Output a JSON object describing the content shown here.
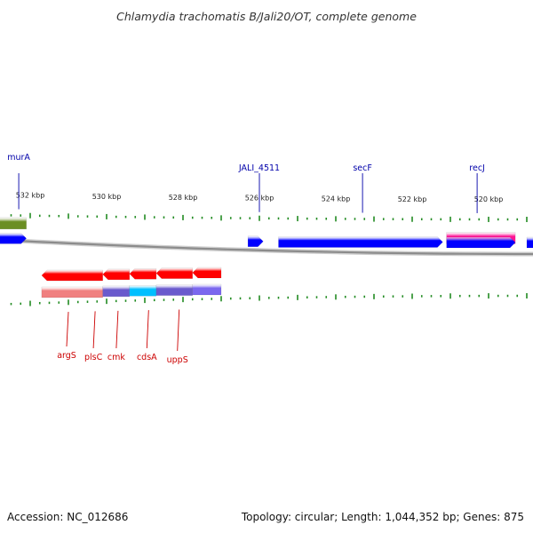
{
  "title": "Chlamydia trachomatis B/Jali20/OT, complete genome",
  "footer": {
    "accession": "Accession: NC_012686",
    "summary": "Topology: circular; Length: 1,044,352 bp; Genes: 875"
  },
  "colors": {
    "forward_cds": "#0000ff",
    "reverse_cds": "#ff0000",
    "olive_track": "#6b8e23",
    "magenta_track": "#ff1493",
    "tick": "#228b22",
    "backbone": "#999999",
    "label_top": "#0000aa",
    "label_bottom": "#cc0000"
  },
  "scale": {
    "labels": [
      {
        "kbp": 532,
        "text": "532 kbp"
      },
      {
        "kbp": 530,
        "text": "530 kbp"
      },
      {
        "kbp": 528,
        "text": "528 kbp"
      },
      {
        "kbp": 526,
        "text": "526 kbp"
      },
      {
        "kbp": 524,
        "text": "524 kbp"
      },
      {
        "kbp": 522,
        "text": "522 kbp"
      },
      {
        "kbp": 520,
        "text": "520 kbp"
      }
    ]
  },
  "top_labels": [
    {
      "name": "murA",
      "kbp": 532.3
    },
    {
      "name": "JALI_4511",
      "kbp": 526.0
    },
    {
      "name": "secF",
      "kbp": 523.3
    },
    {
      "name": "recJ",
      "kbp": 520.3
    }
  ],
  "bottom_labels": [
    {
      "name": "argS",
      "kbp": 531.0
    },
    {
      "name": "plsC",
      "kbp": 530.3
    },
    {
      "name": "cmk",
      "kbp": 529.7
    },
    {
      "name": "cdsA",
      "kbp": 528.9
    },
    {
      "name": "uppS",
      "kbp": 528.1
    }
  ],
  "features": [
    {
      "id": "olive-block",
      "track": "olive",
      "start_kbp": 533.5,
      "end_kbp": 532.1,
      "color": "#6b8e23"
    },
    {
      "id": "magenta-block",
      "track": "magenta",
      "start_kbp": 521.1,
      "end_kbp": 519.3,
      "color": "#ff1493"
    },
    {
      "id": "fwd-left",
      "track": "fwd",
      "start_kbp": 533.5,
      "end_kbp": 532.1,
      "color": "#0000ff",
      "arrow": true
    },
    {
      "id": "fwd-small",
      "track": "fwd",
      "start_kbp": 526.3,
      "end_kbp": 525.9,
      "color": "#0000ff",
      "arrow": true
    },
    {
      "id": "fwd-secF",
      "track": "fwd",
      "start_kbp": 525.5,
      "end_kbp": 521.2,
      "color": "#0000ff",
      "arrow": true
    },
    {
      "id": "fwd-recJ",
      "track": "fwd",
      "start_kbp": 521.1,
      "end_kbp": 519.3,
      "color": "#0000ff",
      "arrow": true
    },
    {
      "id": "fwd-right",
      "track": "fwd",
      "start_kbp": 519.0,
      "end_kbp": 518.5,
      "color": "#0000ff",
      "arrow": false
    },
    {
      "id": "rev-argS",
      "track": "rev",
      "start_kbp": 531.7,
      "end_kbp": 530.1,
      "color": "#ff0000"
    },
    {
      "id": "rev-plsC",
      "track": "rev",
      "start_kbp": 530.1,
      "end_kbp": 529.4,
      "color": "#ff0000"
    },
    {
      "id": "rev-cmk",
      "track": "rev",
      "start_kbp": 529.4,
      "end_kbp": 528.7,
      "color": "#ff0000"
    },
    {
      "id": "rev-cdsA",
      "track": "rev",
      "start_kbp": 528.7,
      "end_kbp": 527.75,
      "color": "#ff0000"
    },
    {
      "id": "rev-uppS",
      "track": "rev",
      "start_kbp": 527.75,
      "end_kbp": 527.0,
      "color": "#ff0000"
    },
    {
      "id": "cat-argS",
      "track": "cat",
      "start_kbp": 531.7,
      "end_kbp": 530.1,
      "color": "#f08080"
    },
    {
      "id": "cat-plsC",
      "track": "cat",
      "start_kbp": 530.1,
      "end_kbp": 529.4,
      "color": "#6a5acd"
    },
    {
      "id": "cat-cmk",
      "track": "cat",
      "start_kbp": 529.4,
      "end_kbp": 528.7,
      "color": "#00bfff"
    },
    {
      "id": "cat-cdsA",
      "track": "cat",
      "start_kbp": 528.7,
      "end_kbp": 527.75,
      "color": "#6a5acd"
    },
    {
      "id": "cat-uppS",
      "track": "cat",
      "start_kbp": 527.75,
      "end_kbp": 527.0,
      "color": "#7b68ee"
    }
  ]
}
